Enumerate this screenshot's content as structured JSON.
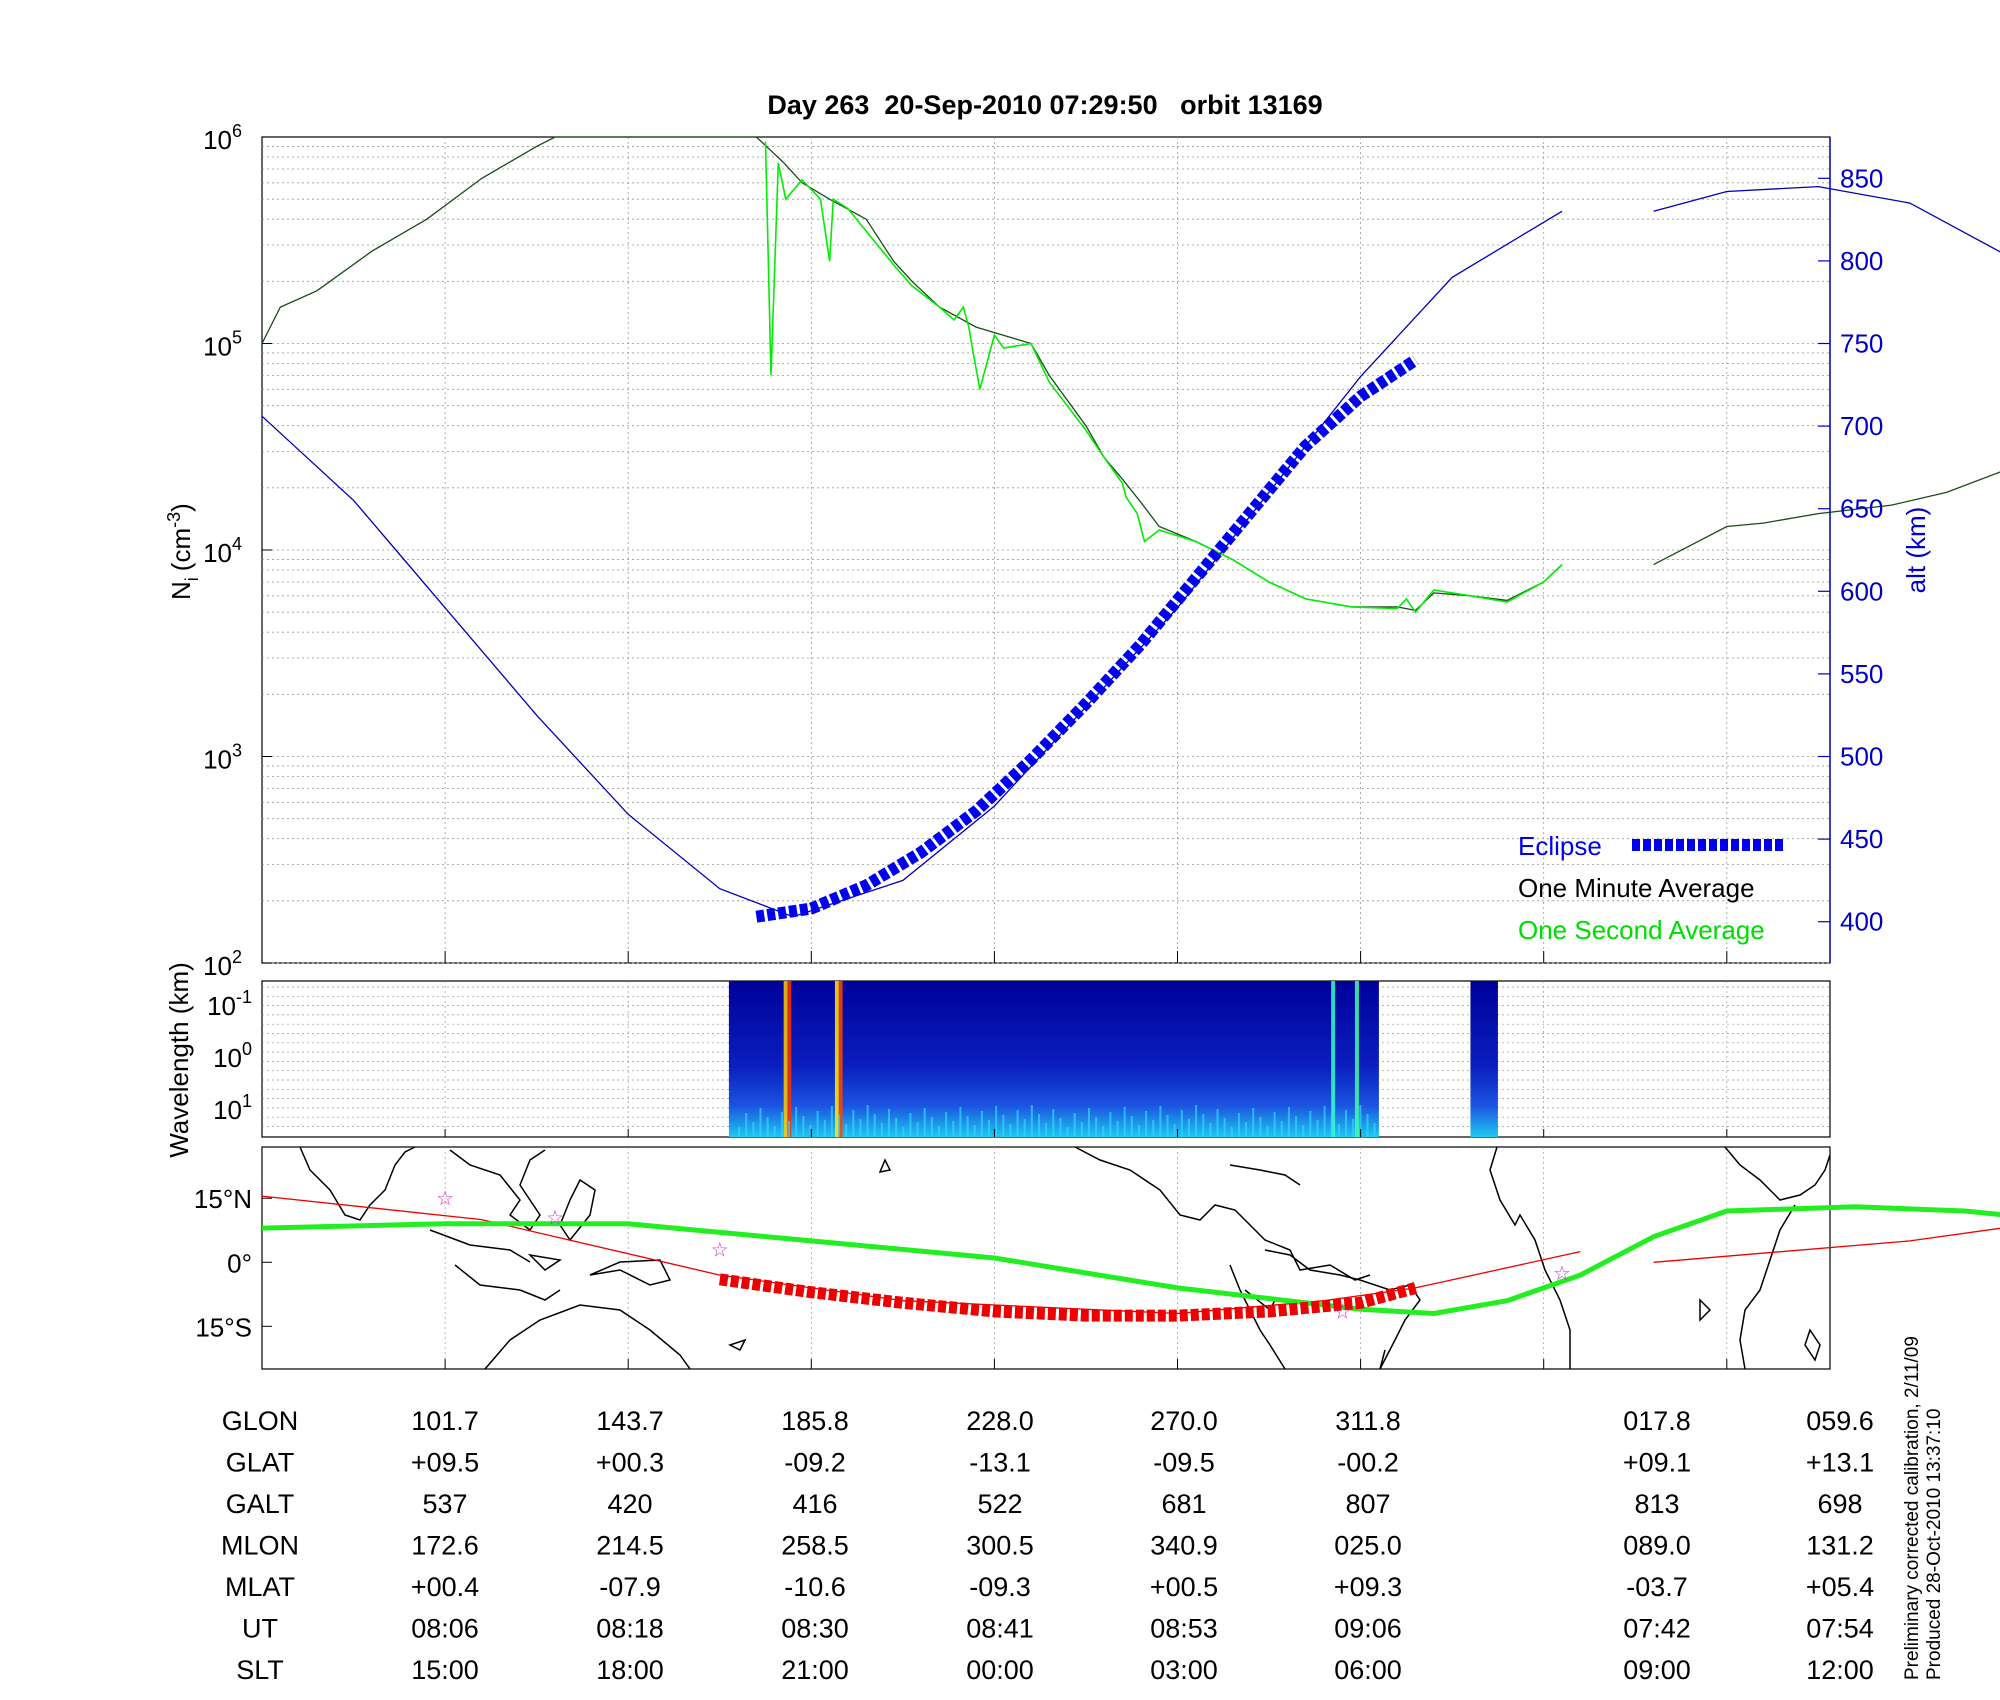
{
  "title": "Day 263  20-Sep-2010 07:29:50   orbit 13169",
  "footnote": {
    "line1": "Preliminary corrected calibration, 2/11/09",
    "line2": "Produced 28-Oct-2010 13:37:10"
  },
  "colors": {
    "eclipse": "#0000ee",
    "one_minute": "#000000",
    "one_second": "#00ee00",
    "altitude": "#0000bb",
    "track_red": "#ee0000",
    "track_green": "#22ee22",
    "magenta_star": "#cc33cc"
  },
  "legend": {
    "eclipse": "Eclipse",
    "one_minute": "One Minute Average",
    "one_second": "One Second Average"
  },
  "chart_data": [
    {
      "type": "line",
      "panel": "ion-density-and-altitude",
      "ylabel": "N",
      "ylabel_sub": "i",
      "ylabel_unit": "(cm",
      "ylabel_exp": "-3",
      "ylabel_close": ")",
      "ylabel_right": "alt (km)",
      "y_scale": "log",
      "ylim": [
        100,
        1000000
      ],
      "yticks_left": [
        {
          "base": "10",
          "exp": "6"
        },
        {
          "base": "10",
          "exp": "5"
        },
        {
          "base": "10",
          "exp": "4"
        },
        {
          "base": "10",
          "exp": "3"
        },
        {
          "base": "10",
          "exp": "2"
        }
      ],
      "y2lim": [
        375,
        875
      ],
      "yticks_right": [
        "850",
        "800",
        "750",
        "700",
        "650",
        "600",
        "550",
        "500",
        "450",
        "400"
      ],
      "grid": true,
      "legend_position": "bottom-right",
      "x_index_range": [
        0,
        8.5
      ],
      "series": [
        {
          "name": "One Minute Average",
          "segments": [
            [
              [
                0,
                100000
              ],
              [
                0.1,
                150000
              ],
              [
                0.3,
                180000
              ],
              [
                0.6,
                280000
              ],
              [
                0.9,
                400000
              ],
              [
                1.2,
                630000
              ],
              [
                1.5,
                900000
              ],
              [
                1.6,
                1000000
              ],
              [
                1.9,
                1000000
              ],
              [
                2.5,
                1000000
              ],
              [
                2.7,
                1000000
              ],
              [
                2.85,
                750000
              ],
              [
                2.95,
                600000
              ],
              [
                3.1,
                500000
              ],
              [
                3.3,
                400000
              ],
              [
                3.45,
                250000
              ],
              [
                3.55,
                200000
              ],
              [
                3.7,
                150000
              ],
              [
                3.9,
                120000
              ],
              [
                4.2,
                100000
              ],
              [
                4.3,
                70000
              ],
              [
                4.5,
                40000
              ],
              [
                4.6,
                28000
              ],
              [
                4.7,
                22000
              ],
              [
                4.8,
                17000
              ],
              [
                4.9,
                13000
              ],
              [
                5.1,
                11000
              ],
              [
                5.3,
                9000
              ],
              [
                5.5,
                7000
              ],
              [
                5.7,
                5800
              ],
              [
                5.95,
                5300
              ],
              [
                6.2,
                5300
              ],
              [
                6.3,
                5100
              ],
              [
                6.4,
                6200
              ],
              [
                6.6,
                6000
              ],
              [
                6.8,
                5700
              ],
              [
                7.0,
                7000
              ],
              [
                7.1,
                8500
              ]
            ],
            [
              [
                7.6,
                8500
              ],
              [
                7.8,
                10500
              ],
              [
                8.0,
                13000
              ],
              [
                8.2,
                13500
              ],
              [
                8.5,
                15000
              ],
              [
                8.9,
                16500
              ],
              [
                9.2,
                19000
              ],
              [
                9.5,
                24000
              ],
              [
                9.8,
                32000
              ],
              [
                10.1,
                50000
              ],
              [
                10.3,
                72000
              ],
              [
                10.4,
                85000
              ],
              [
                10.5,
                95000
              ]
            ]
          ]
        },
        {
          "name": "One Second Average",
          "segments": [
            [
              [
                2.75,
                950000
              ],
              [
                2.78,
                70000
              ],
              [
                2.82,
                750000
              ],
              [
                2.86,
                500000
              ],
              [
                2.95,
                620000
              ],
              [
                3.05,
                500000
              ],
              [
                3.1,
                250000
              ],
              [
                3.12,
                500000
              ],
              [
                3.2,
                450000
              ],
              [
                3.3,
                350000
              ],
              [
                3.45,
                240000
              ],
              [
                3.55,
                190000
              ],
              [
                3.7,
                150000
              ],
              [
                3.78,
                130000
              ],
              [
                3.83,
                150000
              ],
              [
                3.86,
                120000
              ],
              [
                3.88,
                95000
              ],
              [
                3.92,
                60000
              ],
              [
                3.95,
                75000
              ],
              [
                4.0,
                110000
              ],
              [
                4.05,
                95000
              ],
              [
                4.2,
                100000
              ],
              [
                4.3,
                65000
              ],
              [
                4.5,
                38000
              ],
              [
                4.6,
                28000
              ],
              [
                4.7,
                21000
              ],
              [
                4.72,
                18000
              ],
              [
                4.78,
                15000
              ],
              [
                4.82,
                11000
              ],
              [
                4.9,
                12500
              ],
              [
                5.1,
                11000
              ],
              [
                5.3,
                9000
              ],
              [
                5.5,
                7000
              ],
              [
                5.7,
                5800
              ],
              [
                5.95,
                5300
              ],
              [
                6.2,
                5200
              ],
              [
                6.25,
                5800
              ],
              [
                6.3,
                5000
              ],
              [
                6.4,
                6400
              ],
              [
                6.6,
                6000
              ],
              [
                6.8,
                5600
              ],
              [
                7.0,
                7000
              ],
              [
                7.1,
                8500
              ]
            ]
          ]
        },
        {
          "name": "Altitude",
          "axis": "right",
          "segments": [
            [
              [
                0,
                706
              ],
              [
                0.5,
                655
              ],
              [
                1.0,
                590
              ],
              [
                1.5,
                525
              ],
              [
                2.0,
                465
              ],
              [
                2.5,
                420
              ],
              [
                2.9,
                403
              ],
              [
                3.5,
                425
              ],
              [
                4.0,
                470
              ],
              [
                4.5,
                530
              ],
              [
                5.0,
                590
              ],
              [
                5.5,
                660
              ],
              [
                6.0,
                730
              ],
              [
                6.5,
                790
              ],
              [
                7.1,
                830
              ]
            ],
            [
              [
                7.6,
                830
              ],
              [
                8.0,
                842
              ],
              [
                8.5,
                845
              ],
              [
                9.0,
                835
              ],
              [
                9.5,
                805
              ],
              [
                10.0,
                760
              ],
              [
                10.5,
                705
              ]
            ]
          ]
        },
        {
          "name": "Eclipse",
          "axis": "right",
          "points": [
            [
              2.7,
              403
            ],
            [
              3.0,
              408
            ],
            [
              3.3,
              422
            ],
            [
              3.6,
              442
            ],
            [
              3.9,
              467
            ],
            [
              4.2,
              498
            ],
            [
              4.5,
              532
            ],
            [
              4.8,
              568
            ],
            [
              5.1,
              608
            ],
            [
              5.4,
              648
            ],
            [
              5.7,
              688
            ],
            [
              6.0,
              718
            ],
            [
              6.3,
              740
            ]
          ]
        }
      ]
    },
    {
      "type": "heatmap",
      "panel": "wavelength-spectrogram",
      "ylabel": "Wavelength (km)",
      "y_scale": "log",
      "yticks": [
        {
          "base": "10",
          "exp": "-1"
        },
        {
          "base": "10",
          "exp": "0"
        },
        {
          "base": "10",
          "exp": "1"
        }
      ],
      "data_blocks": [
        [
          2.55,
          6.1
        ],
        [
          6.6,
          6.75
        ]
      ],
      "colormap": "jet"
    },
    {
      "type": "map",
      "panel": "ground-track",
      "yticks": [
        "15°N",
        "0°",
        "15°S"
      ],
      "ylim": [
        -25,
        27
      ],
      "series": [
        {
          "name": "track-red",
          "points": [
            [
              0,
              15.5
            ],
            [
              1.2,
              10
            ],
            [
              2.5,
              -3
            ],
            [
              3.5,
              -9
            ],
            [
              5.0,
              -12
            ],
            [
              5.8,
              -9
            ],
            [
              6.3,
              -6
            ],
            [
              7.2,
              2.5
            ]
          ]
        },
        {
          "name": "track-red-2",
          "points": [
            [
              7.6,
              0
            ],
            [
              9.0,
              5
            ],
            [
              10.0,
              11
            ],
            [
              10.5,
              13.5
            ]
          ]
        },
        {
          "name": "track-green",
          "points": [
            [
              0,
              8
            ],
            [
              1.0,
              9
            ],
            [
              2.0,
              9
            ],
            [
              3.0,
              5
            ],
            [
              4.0,
              1
            ],
            [
              5.0,
              -6
            ],
            [
              6.0,
              -11
            ],
            [
              6.4,
              -12
            ],
            [
              6.8,
              -9
            ],
            [
              7.2,
              -3
            ],
            [
              7.6,
              6
            ],
            [
              8.0,
              12
            ],
            [
              8.7,
              13
            ],
            [
              9.3,
              12
            ],
            [
              10.0,
              9
            ],
            [
              10.5,
              8
            ]
          ]
        },
        {
          "name": "eclipse-track",
          "points": [
            [
              2.5,
              -4
            ],
            [
              3.0,
              -7
            ],
            [
              3.5,
              -9.5
            ],
            [
              4.0,
              -11.5
            ],
            [
              4.5,
              -12.5
            ],
            [
              5.0,
              -12.5
            ],
            [
              5.5,
              -11.5
            ],
            [
              6.0,
              -9.5
            ],
            [
              6.3,
              -6
            ]
          ]
        }
      ],
      "stars": [
        [
          1.0,
          15
        ],
        [
          1.6,
          10.5
        ],
        [
          2.5,
          3
        ],
        [
          5.9,
          -11.5
        ],
        [
          7.1,
          -2.5
        ]
      ]
    }
  ],
  "table": {
    "row_labels": [
      "GLON",
      "GLAT",
      "GALT",
      "MLON",
      "MLAT",
      "UT",
      "SLT"
    ],
    "columns": [
      [
        "101.7",
        "+09.5",
        "537",
        "172.6",
        "+00.4",
        "08:06",
        "15:00"
      ],
      [
        "143.7",
        "+00.3",
        "420",
        "214.5",
        "-07.9",
        "08:18",
        "18:00"
      ],
      [
        "185.8",
        "-09.2",
        "416",
        "258.5",
        "-10.6",
        "08:30",
        "21:00"
      ],
      [
        "228.0",
        "-13.1",
        "522",
        "300.5",
        "-09.3",
        "08:41",
        "00:00"
      ],
      [
        "270.0",
        "-09.5",
        "681",
        "340.9",
        "+00.5",
        "08:53",
        "03:00"
      ],
      [
        "311.8",
        "-00.2",
        "807",
        "025.0",
        "+09.3",
        "09:06",
        "06:00"
      ],
      [
        "017.8",
        "+09.1",
        "813",
        "089.0",
        "-03.7",
        "07:42",
        "09:00"
      ],
      [
        "059.6",
        "+13.1",
        "698",
        "131.2",
        "+05.4",
        "07:54",
        "12:00"
      ]
    ]
  }
}
